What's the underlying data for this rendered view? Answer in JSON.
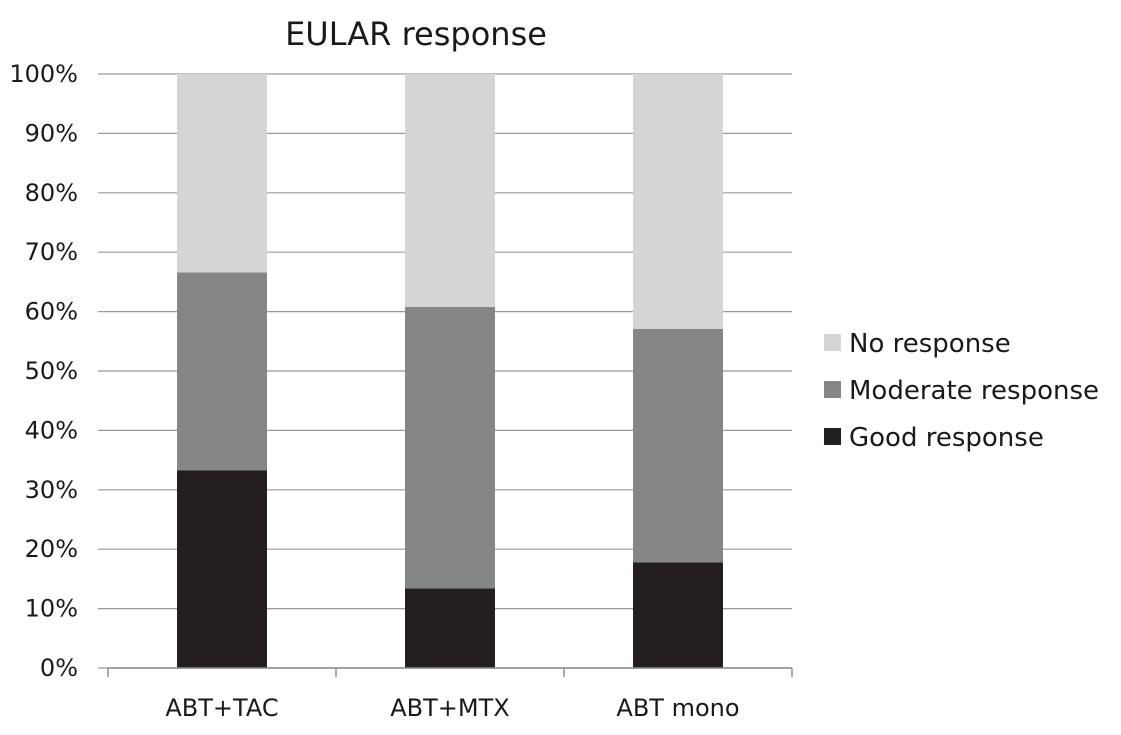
{
  "chart_data": {
    "type": "bar",
    "stacked": true,
    "title": "EULAR response",
    "xlabel": "",
    "ylabel": "",
    "categories": [
      "ABT+TAC",
      "ABT+MTX",
      "ABT mono"
    ],
    "series": [
      {
        "name": "Good response",
        "values": [
          33.3,
          13.4,
          17.8
        ],
        "color": "#231f20"
      },
      {
        "name": "Moderate response",
        "values": [
          33.3,
          47.4,
          39.3
        ],
        "color": "#858688"
      },
      {
        "name": "No response",
        "values": [
          33.4,
          39.2,
          42.9
        ],
        "color": "#d4d5d6"
      }
    ],
    "ylim": [
      0,
      100
    ],
    "yticks": [
      "0%",
      "10%",
      "20%",
      "30%",
      "40%",
      "50%",
      "60%",
      "70%",
      "80%",
      "90%",
      "100%"
    ],
    "grid": true,
    "legend_position": "right",
    "legend_order": [
      "No response",
      "Moderate response",
      "Good response"
    ]
  }
}
